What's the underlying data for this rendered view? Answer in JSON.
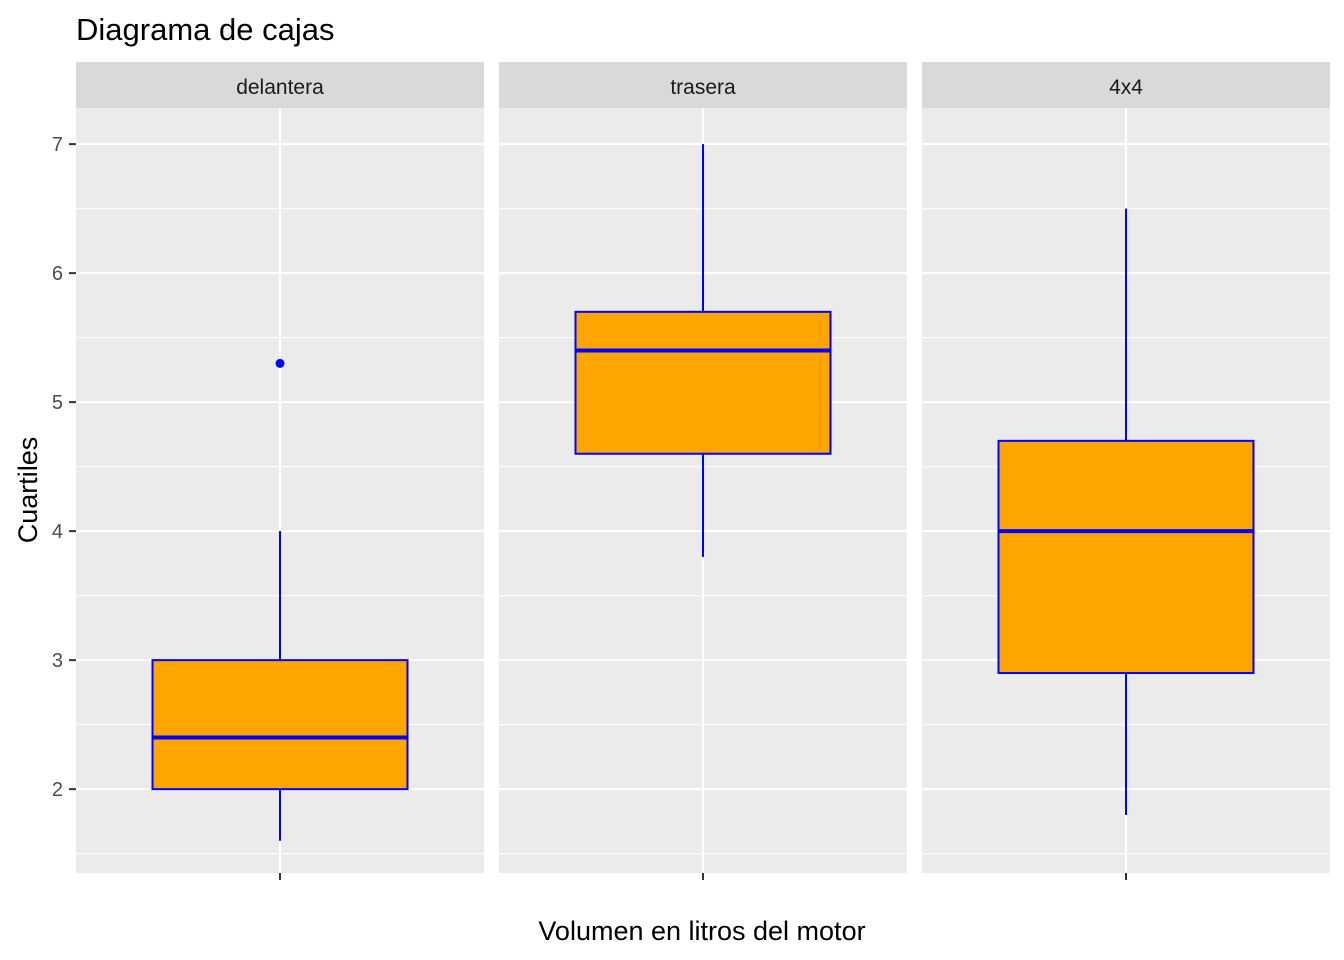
{
  "chart_data": {
    "type": "boxplot",
    "title": "Diagrama de cajas",
    "xlabel": "Volumen en litros del motor",
    "ylabel": "Cuartiles",
    "ylim": [
      1.35,
      7.28
    ],
    "yticks": [
      2,
      3,
      4,
      5,
      6,
      7
    ],
    "grid": true,
    "colors": {
      "box_fill": "#FFA500",
      "box_line": "#0000FF",
      "panel_bg": "#EBEBEB",
      "strip_bg": "#D9D9D9",
      "grid": "#FFFFFF"
    },
    "panels": [
      {
        "label": "delantera",
        "whisker_low": 1.6,
        "q1": 2.0,
        "median": 2.4,
        "q3": 3.0,
        "whisker_high": 4.0,
        "outliers": [
          5.3
        ]
      },
      {
        "label": "trasera",
        "whisker_low": 3.8,
        "q1": 4.6,
        "median": 5.4,
        "q3": 5.7,
        "whisker_high": 7.0,
        "outliers": []
      },
      {
        "label": "4x4",
        "whisker_low": 1.8,
        "q1": 2.9,
        "median": 4.0,
        "q3": 4.7,
        "whisker_high": 6.5,
        "outliers": []
      }
    ]
  }
}
